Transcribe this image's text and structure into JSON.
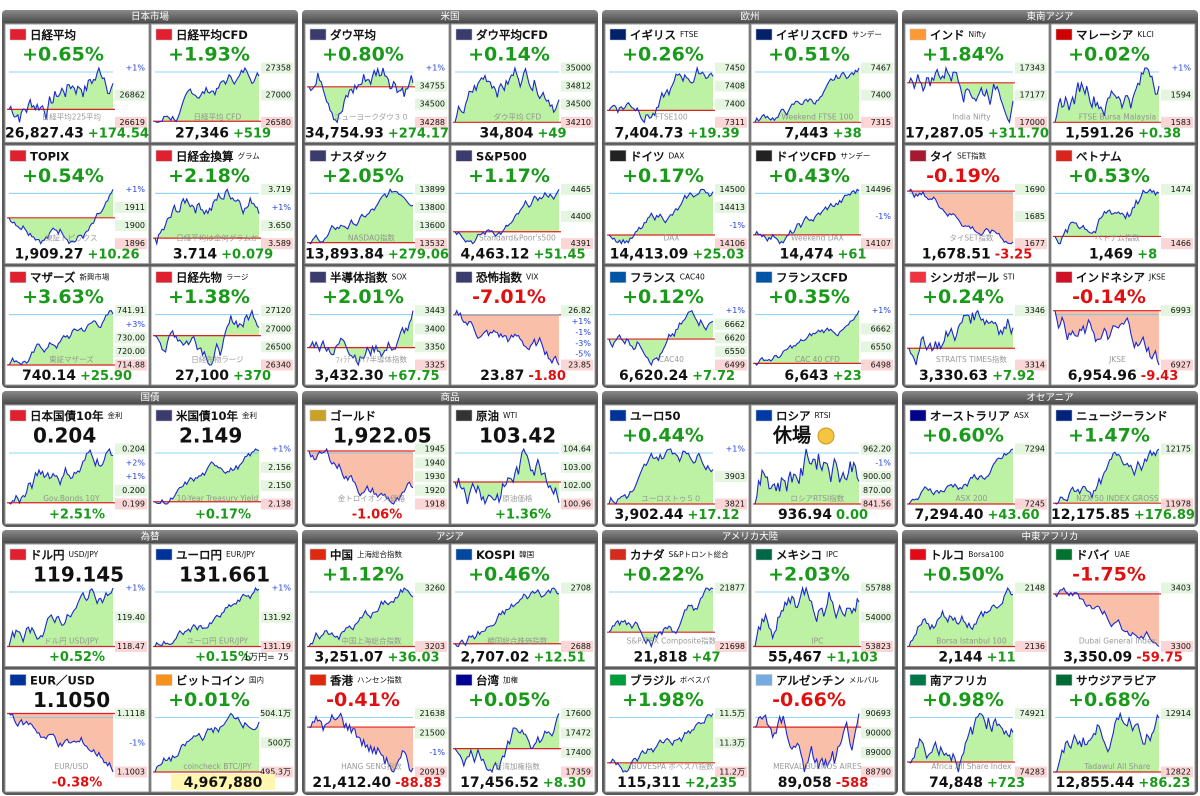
{
  "sections": [
    {
      "title": "日本市場",
      "tiles": [
        {
          "flag": "#e0202f",
          "name": "日経平均",
          "change": "+0.65%",
          "labels": [
            "+1%",
            "26862",
            "26619"
          ],
          "watermark": "日経平均225平均",
          "price": "26,827.43",
          "diff": "+174.54"
        },
        {
          "flag": "#e0202f",
          "name": "日経平均CFD",
          "change": "+1.93%",
          "labels": [
            "27358",
            "27000",
            "26580"
          ],
          "watermark": "日経平均 CFD",
          "price": "27,346",
          "diff": "+519"
        },
        {
          "flag": "#e0202f",
          "name": "TOPIX",
          "change": "+0.54%",
          "labels": [
            "+1%",
            "1911",
            "1900",
            "1896"
          ],
          "watermark": "東証トピックス",
          "price": "1,909.27",
          "diff": "+10.26"
        },
        {
          "flag": "#e0202f",
          "name": "日経金換算",
          "sub": "グラム",
          "change": "+2.18%",
          "labels": [
            "3.719",
            "+1%",
            "3.650",
            "3.589"
          ],
          "watermark": "日経平均は金何グラムか",
          "price": "3.714",
          "diff": "+0.079"
        },
        {
          "flag": "#e0202f",
          "name": "マザーズ",
          "sub": "新興市場",
          "change": "+3.63%",
          "labels": [
            "741.91",
            "+3%",
            "730.00",
            "720.00",
            "714.88"
          ],
          "watermark": "東証マザーズ",
          "price": "740.14",
          "diff": "+25.90"
        },
        {
          "flag": "#e0202f",
          "name": "日経先物",
          "sub": "ラージ",
          "change": "+1.38%",
          "labels": [
            "27120",
            "27000",
            "26500",
            "26340"
          ],
          "watermark": "日経先物ラージ",
          "price": "27,100",
          "diff": "+370"
        }
      ]
    },
    {
      "title": "米国",
      "tiles": [
        {
          "flag": "#3c3b6e",
          "name": "ダウ平均",
          "change": "+0.80%",
          "labels": [
            "+1%",
            "34755",
            "34500",
            "34288"
          ],
          "watermark": "ニューヨークダウ３０",
          "price": "34,754.93",
          "diff": "+274.17"
        },
        {
          "flag": "#3c3b6e",
          "name": "ダウ平均CFD",
          "change": "+0.14%",
          "labels": [
            "35000",
            "34812",
            "34500",
            "34210"
          ],
          "watermark": "ダウ平均 CFD",
          "price": "34,804",
          "diff": "+49"
        },
        {
          "flag": "#3c3b6e",
          "name": "ナスダック",
          "change": "+2.05%",
          "labels": [
            "13899",
            "13800",
            "13600",
            "13532"
          ],
          "watermark": "NASDAQ指数",
          "price": "13,893.84",
          "diff": "+279.06"
        },
        {
          "flag": "#3c3b6e",
          "name": "S&P500",
          "change": "+1.17%",
          "labels": [
            "4465",
            "4400",
            "4391"
          ],
          "watermark": "Standard&Poor's500",
          "price": "4,463.12",
          "diff": "+51.45"
        },
        {
          "flag": "#3c3b6e",
          "name": "半導体指数",
          "sub": "SOX",
          "change": "+2.01%",
          "labels": [
            "3443",
            "3400",
            "3350",
            "3325"
          ],
          "watermark": "ﾌｨﾗﾃﾞﾙﾌｨｱ半導体指数",
          "price": "3,432.30",
          "diff": "+67.75"
        },
        {
          "flag": "#3c3b6e",
          "name": "恐怖指数",
          "sub": "VIX",
          "change": "-7.01%",
          "labels": [
            "26.82",
            "+1%",
            "-1%",
            "-3%",
            "-5%",
            "23.85"
          ],
          "price": "23.87",
          "diff": "-1.80"
        }
      ]
    },
    {
      "title": "欧州",
      "tiles": [
        {
          "flag": "#012169",
          "name": "イギリス",
          "sub": "FTSE",
          "change": "+0.26%",
          "labels": [
            "7450",
            "7408",
            "7400",
            "7311"
          ],
          "watermark": "FTSE100",
          "price": "7,404.73",
          "diff": "+19.39"
        },
        {
          "flag": "#012169",
          "name": "イギリスCFD",
          "sub": "サンデー",
          "change": "+0.51%",
          "labels": [
            "7467",
            "7400",
            "7315"
          ],
          "watermark": "Weekend FTSE 100",
          "price": "7,443",
          "diff": "+38"
        },
        {
          "flag": "#222222",
          "name": "ドイツ",
          "sub": "DAX",
          "change": "+0.17%",
          "labels": [
            "14500",
            "14413",
            "-1%",
            "14106"
          ],
          "watermark": "DAX",
          "price": "14,413.09",
          "diff": "+25.03"
        },
        {
          "flag": "#222222",
          "name": "ドイツCFD",
          "sub": "サンデー",
          "change": "+0.43%",
          "labels": [
            "14496",
            "-1%",
            "14107"
          ],
          "watermark": "Weekend DAX",
          "price": "14,474",
          "diff": "+61"
        },
        {
          "flag": "#0055a4",
          "name": "フランス",
          "sub": "CAC40",
          "change": "+0.12%",
          "labels": [
            "+1%",
            "6662",
            "6620",
            "6550",
            "6499"
          ],
          "watermark": "CAC40",
          "price": "6,620.24",
          "diff": "+7.72"
        },
        {
          "flag": "#0055a4",
          "name": "フランスCFD",
          "change": "+0.35%",
          "labels": [
            "+1%",
            "6662",
            "6550",
            "6498"
          ],
          "watermark": "CAC 40 CFD",
          "price": "6,643",
          "diff": "+23"
        }
      ]
    },
    {
      "title": "東南アジア",
      "tiles": [
        {
          "flag": "#ff9933",
          "name": "インド",
          "sub": "Nifty",
          "change": "+1.84%",
          "labels": [
            "17343",
            "17177",
            "17000"
          ],
          "watermark": "India Nifty",
          "price": "17,287.05",
          "diff": "+311.70"
        },
        {
          "flag": "#cc0001",
          "name": "マレーシア",
          "sub": "KLCI",
          "change": "+0.02%",
          "labels": [
            "+1%",
            "1594",
            "1583"
          ],
          "watermark": "FTSE Bursa Malaysia",
          "price": "1,591.26",
          "diff": "+0.38"
        },
        {
          "flag": "#a51931",
          "name": "タイ",
          "sub": "SET指数",
          "change": "-0.19%",
          "labels": [
            "1690",
            "1685",
            "1677"
          ],
          "watermark": "タイSET指数",
          "price": "1,678.51",
          "diff": "-3.25"
        },
        {
          "flag": "#da251d",
          "name": "ベトナム",
          "change": "+0.53%",
          "labels": [
            "1474",
            "1466"
          ],
          "watermark": "ベトナム指数",
          "price": "1,469",
          "diff": "+8"
        },
        {
          "flag": "#ef3340",
          "name": "シンガポール",
          "sub": "STI",
          "change": "+0.24%",
          "labels": [
            "3346",
            "3314"
          ],
          "watermark": "STRAITS TIMES指数",
          "price": "3,330.63",
          "diff": "+7.92"
        },
        {
          "flag": "#ce1126",
          "name": "インドネシア",
          "sub": "JKSE",
          "change": "-0.14%",
          "labels": [
            "6993",
            "6927"
          ],
          "watermark": "JKSE",
          "price": "6,954.96",
          "diff": "-9.43"
        }
      ]
    },
    {
      "title": "国債",
      "tiles": [
        {
          "flag": "#e0202f",
          "name": "日本国債10年",
          "sub": "金利",
          "rate": "0.204",
          "labels": [
            "0.204",
            "+2%",
            "+1%",
            "0.200",
            "0.199"
          ],
          "watermark": "Gov.Bonds 10Y",
          "change": "+2.51%"
        },
        {
          "flag": "#3c3b6e",
          "name": "米国債10年",
          "sub": "金利",
          "rate": "2.149",
          "labels": [
            "+1%",
            "2.156",
            "2.150",
            "2.138"
          ],
          "watermark": "10-Year Treasury Yield",
          "change": "+0.17%"
        }
      ]
    },
    {
      "title": "商品",
      "tiles": [
        {
          "flag": "#c9a227",
          "name": "ゴールド",
          "rate": "1,922.05",
          "labels": [
            "1945",
            "1940",
            "1930",
            "1920",
            "1918"
          ],
          "watermark": "金トロイオンス価格",
          "change": "-1.06%"
        },
        {
          "flag": "#333333",
          "name": "原油",
          "sub": "WTI",
          "rate": "103.42",
          "labels": [
            "104.64",
            "103.00",
            "102.00",
            "100.96"
          ],
          "watermark": "原油価格",
          "change": "+1.36%"
        }
      ]
    },
    {
      "tiles": [
        {
          "flag": "#003399",
          "name": "ユーロ50",
          "change": "+0.44%",
          "labels": [
            "+1%",
            "3903",
            "3821"
          ],
          "watermark": "ユーロストゥ５０",
          "price": "3,902.44",
          "diff": "+17.12"
        },
        {
          "flag": "#0039a6",
          "name": "ロシア",
          "sub": "RTSI",
          "closed": "休場",
          "labels": [
            "962.20",
            "-1%",
            "900.00",
            "870.00",
            "841.56"
          ],
          "watermark": "ロシアRTSI指数",
          "price": "936.94",
          "diff": "0.00"
        }
      ]
    },
    {
      "title": "オセアニア",
      "tiles": [
        {
          "flag": "#00008b",
          "name": "オーストラリア",
          "sub": "ASX",
          "change": "+0.60%",
          "labels": [
            "7294",
            "7245"
          ],
          "watermark": "ASX 200",
          "price": "7,294.40",
          "diff": "+43.60"
        },
        {
          "flag": "#00247d",
          "name": "ニュージーランド",
          "change": "+1.47%",
          "labels": [
            "12175",
            "11978"
          ],
          "watermark": "NZX 50 INDEX GROSS",
          "price": "12,175.85",
          "diff": "+176.89"
        }
      ]
    },
    {
      "title": "為替",
      "tiles": [
        {
          "flag": "#e0202f",
          "name": "ドル円",
          "sub": "USD/JPY",
          "rate": "119.145",
          "labels": [
            "+1%",
            "119.40",
            "118.47"
          ],
          "watermark": "ドル円 USD/JPY",
          "change": "+0.52%"
        },
        {
          "flag": "#003399",
          "name": "ユーロ円",
          "sub": "EUR/JPY",
          "rate": "131.661",
          "labels": [
            "+1%",
            "131.92",
            "131.19"
          ],
          "watermark": "ユーロ円 EUR/JPY",
          "change": "+0.15%",
          "note": "1万円= 75"
        },
        {
          "flag": "#003399",
          "name": "EUR／USD",
          "rate": "1.1050",
          "labels": [
            "1.1118",
            "-1%",
            "1.1003"
          ],
          "watermark": "EUR/USD",
          "change": "-0.38%"
        },
        {
          "flag": "#f7931a",
          "name": "ビットコイン",
          "sub": "国内",
          "change": "+0.01%",
          "labels": [
            "504.1万",
            "500万",
            "495.3万"
          ],
          "watermark": "coincheck BTC/JPY",
          "price": "4,967,880"
        }
      ]
    },
    {
      "title": "アジア",
      "tiles": [
        {
          "flag": "#de2910",
          "name": "中国",
          "sub": "上海総合指数",
          "change": "+1.12%",
          "labels": [
            "3260",
            "3203"
          ],
          "watermark": "中国上海総合指数",
          "price": "3,251.07",
          "diff": "+36.03"
        },
        {
          "flag": "#0047a0",
          "name": "KOSPI",
          "sub": "韓国",
          "change": "+0.46%",
          "labels": [
            "2708",
            "2688"
          ],
          "watermark": "韓国総合株価指数",
          "price": "2,707.02",
          "diff": "+12.51"
        },
        {
          "flag": "#de2910",
          "name": "香港",
          "sub": "ハンセン指数",
          "change": "-0.41%",
          "labels": [
            "21638",
            "21500",
            "-1%",
            "20919"
          ],
          "watermark": "HANG SENG指数",
          "price": "21,412.40",
          "diff": "-88.83"
        },
        {
          "flag": "#000095",
          "name": "台湾",
          "sub": "加権",
          "change": "+0.05%",
          "labels": [
            "17600",
            "17472",
            "17400",
            "17359"
          ],
          "watermark": "台湾加権指数",
          "price": "17,456.52",
          "diff": "+8.30"
        }
      ]
    },
    {
      "title": "アメリカ大陸",
      "tiles": [
        {
          "flag": "#d52b1e",
          "name": "カナダ",
          "sub": "S&Pトロント総合",
          "change": "+0.22%",
          "labels": [
            "21877",
            "21698"
          ],
          "watermark": "S&P/TSX Composite指数",
          "price": "21,818",
          "diff": "+47"
        },
        {
          "flag": "#006847",
          "name": "メキシコ",
          "sub": "IPC",
          "change": "+2.03%",
          "labels": [
            "55788",
            "54000",
            "53823"
          ],
          "watermark": "IPC",
          "price": "55,467",
          "diff": "+1,103"
        },
        {
          "flag": "#009c3b",
          "name": "ブラジル",
          "sub": "ボベスパ",
          "change": "+1.98%",
          "labels": [
            "11.5万",
            "11.3万",
            "11.2万"
          ],
          "watermark": "IBOVESPA ボベスパ指数",
          "price": "115,311",
          "diff": "+2,235"
        },
        {
          "flag": "#74acdf",
          "name": "アルゼンチン",
          "sub": "メルバル",
          "change": "-0.66%",
          "labels": [
            "90693",
            "90000",
            "89000",
            "88790"
          ],
          "watermark": "MERVAL BUENOS AIRES",
          "price": "89,058",
          "diff": "-588"
        }
      ]
    },
    {
      "title": "中東アフリカ",
      "tiles": [
        {
          "flag": "#e30a17",
          "name": "トルコ",
          "sub": "Borsa100",
          "change": "+0.50%",
          "labels": [
            "2148",
            "2136"
          ],
          "watermark": "Borsa Istanbul 100",
          "price": "2,144",
          "diff": "+11"
        },
        {
          "flag": "#00732f",
          "name": "ドバイ",
          "sub": "UAE",
          "change": "-1.75%",
          "labels": [
            "3403",
            "3300"
          ],
          "watermark": "Dubai General Index",
          "price": "3,350.09",
          "diff": "-59.75"
        },
        {
          "flag": "#007749",
          "name": "南アフリカ",
          "change": "+0.98%",
          "labels": [
            "74921",
            "74283"
          ],
          "watermark": "Africa All Share Index",
          "price": "74,848",
          "diff": "+723"
        },
        {
          "flag": "#006c35",
          "name": "サウジアラビア",
          "change": "+0.68%",
          "labels": [
            "12914",
            "12822"
          ],
          "watermark": "Tadawul All Share",
          "price": "12,855.44",
          "diff": "+86.23"
        }
      ]
    }
  ]
}
